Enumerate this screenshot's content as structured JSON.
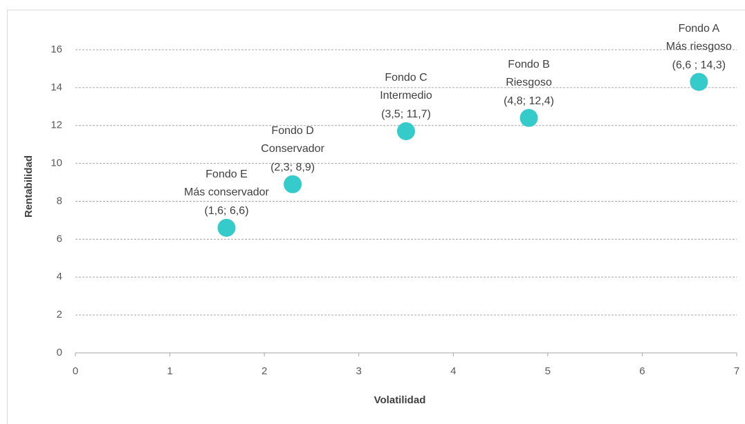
{
  "chart_data": {
    "type": "scatter",
    "x_label": "Volatilidad",
    "y_label": "Rentabilidad",
    "x": [
      1.6,
      2.3,
      3.5,
      4.8,
      6.6
    ],
    "values": [
      6.6,
      8.9,
      11.7,
      12.4,
      14.3
    ],
    "point_names": [
      "Fondo E",
      "Fondo D",
      "Fondo C",
      "Fondo B",
      "Fondo A"
    ],
    "point_descriptions": [
      "Más conservador",
      "Conservador",
      "Intermedio",
      "Riesgoso",
      "Más riesgoso"
    ],
    "value_labels": [
      "(1,6; 6,6)",
      "(2,3; 8,9)",
      "(3,5; 11,7)",
      "(4,8; 12,4)",
      "(6,6 ; 14,3)"
    ],
    "color": "#36cbcb",
    "xlim": [
      0,
      7
    ],
    "xticks": [
      0,
      1,
      2,
      3,
      4,
      5,
      6,
      7
    ],
    "ylim": [
      0,
      16
    ],
    "yticks": [
      0,
      2,
      4,
      6,
      8,
      10,
      12,
      14,
      16
    ],
    "grid": true
  }
}
